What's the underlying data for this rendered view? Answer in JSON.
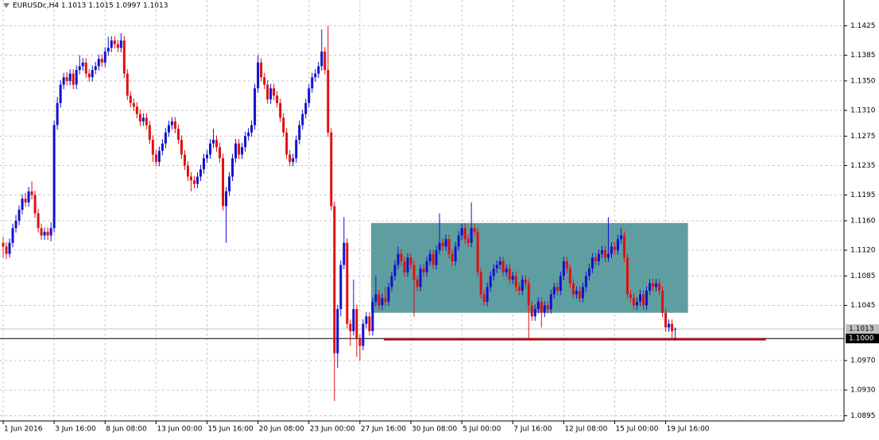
{
  "chart_data": {
    "type": "candlestick",
    "title": "EURUSDc,H4  1.1013 1.1015 1.0997 1.1013",
    "up_color": "#1010d0",
    "down_color": "#e01010",
    "grid": true,
    "xlim": [
      -1,
      264
    ],
    "ylim": [
      1.0888,
      1.146
    ],
    "xticks": [
      {
        "value": 0,
        "label": "1 Jun 2016"
      },
      {
        "value": 16,
        "label": "3 Jun 16:00"
      },
      {
        "value": 32,
        "label": "8 Jun 08:00"
      },
      {
        "value": 48,
        "label": "13 Jun 00:00"
      },
      {
        "value": 64,
        "label": "15 Jun 16:00"
      },
      {
        "value": 80,
        "label": "20 Jun 08:00"
      },
      {
        "value": 96,
        "label": "23 Jun 00:00"
      },
      {
        "value": 112,
        "label": "27 Jun 16:00"
      },
      {
        "value": 128,
        "label": "30 Jun 08:00"
      },
      {
        "value": 144,
        "label": "5 Jul 00:00"
      },
      {
        "value": 160,
        "label": "7 Jul 16:00"
      },
      {
        "value": 176,
        "label": "12 Jul 08:00"
      },
      {
        "value": 192,
        "label": "15 Jul 00:00"
      },
      {
        "value": 208,
        "label": "19 Jul 16:00"
      }
    ],
    "yticks": [
      1.1425,
      1.1385,
      {
        "value": 1.135,
        "label": "1.1350"
      },
      {
        "value": 1.131,
        "label": "1.1310"
      },
      1.1275,
      1.1235,
      1.1195,
      {
        "value": 1.116,
        "label": "1.1160"
      },
      {
        "value": 1.112,
        "label": "1.1120"
      },
      1.1085,
      1.1045,
      {
        "value": 1.097,
        "label": "1.0970"
      },
      {
        "value": 1.093,
        "label": "1.0930"
      },
      1.0895
    ],
    "price_lines": [
      {
        "value": 1.1013,
        "label": "1.1013",
        "color": "#c0c0c0",
        "text_color": "#000000"
      },
      {
        "value": 1.1,
        "label": "1.1000",
        "color": "#000000",
        "text_color": "#ffffff"
      }
    ],
    "rectangle": {
      "x": [
        115.5,
        215
      ],
      "y": [
        1.1035,
        1.1157
      ],
      "color": "#5f9ea0"
    },
    "hline": {
      "x": [
        119.5,
        239.5
      ],
      "y": 1.0999,
      "color": "#a01010"
    },
    "candles": [
      [
        1.113,
        1.1138,
        1.111,
        1.1125
      ],
      [
        1.1125,
        1.1131,
        1.1108,
        1.1115
      ],
      [
        1.1115,
        1.1136,
        1.111,
        1.113
      ],
      [
        1.113,
        1.1156,
        1.1124,
        1.115
      ],
      [
        1.115,
        1.1168,
        1.1144,
        1.116
      ],
      [
        1.116,
        1.1181,
        1.1154,
        1.1175
      ],
      [
        1.1175,
        1.1196,
        1.1169,
        1.119
      ],
      [
        1.119,
        1.1198,
        1.1179,
        1.1185
      ],
      [
        1.1185,
        1.1206,
        1.1179,
        1.12
      ],
      [
        1.12,
        1.1214,
        1.1189,
        1.1195
      ],
      [
        1.1195,
        1.1201,
        1.1164,
        1.117
      ],
      [
        1.117,
        1.1176,
        1.1144,
        1.115
      ],
      [
        1.115,
        1.1156,
        1.1134,
        1.114
      ],
      [
        1.114,
        1.1151,
        1.1134,
        1.1145
      ],
      [
        1.1145,
        1.1151,
        1.1134,
        1.114
      ],
      [
        1.114,
        1.1158,
        1.1132,
        1.115
      ],
      [
        1.115,
        1.1296,
        1.1144,
        1.129
      ],
      [
        1.129,
        1.1328,
        1.1284,
        1.132
      ],
      [
        1.132,
        1.1351,
        1.1314,
        1.1345
      ],
      [
        1.1345,
        1.1361,
        1.1339,
        1.1355
      ],
      [
        1.1355,
        1.1362,
        1.1344,
        1.135
      ],
      [
        1.135,
        1.1366,
        1.1344,
        1.136
      ],
      [
        1.136,
        1.1366,
        1.1339,
        1.1345
      ],
      [
        1.1345,
        1.1371,
        1.1339,
        1.1365
      ],
      [
        1.1365,
        1.1385,
        1.1359,
        1.137
      ],
      [
        1.137,
        1.1381,
        1.1364,
        1.1375
      ],
      [
        1.1375,
        1.1381,
        1.1354,
        1.136
      ],
      [
        1.136,
        1.1366,
        1.1349,
        1.1355
      ],
      [
        1.1355,
        1.1371,
        1.1349,
        1.1365
      ],
      [
        1.1365,
        1.1376,
        1.1359,
        1.137
      ],
      [
        1.137,
        1.1386,
        1.1364,
        1.138
      ],
      [
        1.138,
        1.1386,
        1.1369,
        1.1375
      ],
      [
        1.1375,
        1.1396,
        1.1369,
        1.139
      ],
      [
        1.139,
        1.141,
        1.1384,
        1.1395
      ],
      [
        1.1395,
        1.1411,
        1.1389,
        1.1405
      ],
      [
        1.1405,
        1.1411,
        1.1394,
        1.14
      ],
      [
        1.14,
        1.1406,
        1.1389,
        1.1395
      ],
      [
        1.1395,
        1.1415,
        1.1389,
        1.1405
      ],
      [
        1.1405,
        1.1411,
        1.1354,
        1.136
      ],
      [
        1.136,
        1.1366,
        1.1324,
        1.133
      ],
      [
        1.133,
        1.1336,
        1.1314,
        1.132
      ],
      [
        1.132,
        1.1326,
        1.1309,
        1.1315
      ],
      [
        1.1315,
        1.1321,
        1.1299,
        1.1305
      ],
      [
        1.1305,
        1.1311,
        1.1289,
        1.1295
      ],
      [
        1.1295,
        1.1306,
        1.1289,
        1.13
      ],
      [
        1.13,
        1.1306,
        1.1284,
        1.129
      ],
      [
        1.129,
        1.1296,
        1.1264,
        1.127
      ],
      [
        1.127,
        1.1276,
        1.124,
        1.125
      ],
      [
        1.125,
        1.1256,
        1.1234,
        1.124
      ],
      [
        1.124,
        1.1261,
        1.1234,
        1.1255
      ],
      [
        1.1255,
        1.1271,
        1.1249,
        1.1265
      ],
      [
        1.1265,
        1.1286,
        1.1259,
        1.128
      ],
      [
        1.128,
        1.1296,
        1.1274,
        1.129
      ],
      [
        1.129,
        1.1301,
        1.1284,
        1.1295
      ],
      [
        1.1295,
        1.1301,
        1.1279,
        1.1285
      ],
      [
        1.1285,
        1.1291,
        1.1264,
        1.127
      ],
      [
        1.127,
        1.1276,
        1.1244,
        1.125
      ],
      [
        1.125,
        1.1256,
        1.1229,
        1.1235
      ],
      [
        1.1235,
        1.1241,
        1.1214,
        1.122
      ],
      [
        1.122,
        1.1226,
        1.12,
        1.1215
      ],
      [
        1.1215,
        1.1221,
        1.1204,
        1.121
      ],
      [
        1.121,
        1.1226,
        1.1204,
        1.122
      ],
      [
        1.122,
        1.1236,
        1.1214,
        1.123
      ],
      [
        1.123,
        1.1251,
        1.1224,
        1.1245
      ],
      [
        1.1245,
        1.1256,
        1.1239,
        1.125
      ],
      [
        1.125,
        1.1271,
        1.1244,
        1.1265
      ],
      [
        1.1265,
        1.1285,
        1.1259,
        1.127
      ],
      [
        1.127,
        1.1276,
        1.1254,
        1.126
      ],
      [
        1.126,
        1.1266,
        1.1239,
        1.1245
      ],
      [
        1.1245,
        1.1251,
        1.1174,
        1.118
      ],
      [
        1.118,
        1.1206,
        1.113,
        1.12
      ],
      [
        1.12,
        1.1226,
        1.1194,
        1.122
      ],
      [
        1.122,
        1.1251,
        1.1214,
        1.1245
      ],
      [
        1.1245,
        1.1271,
        1.1239,
        1.1265
      ],
      [
        1.1265,
        1.1271,
        1.1244,
        1.125
      ],
      [
        1.125,
        1.1266,
        1.1244,
        1.126
      ],
      [
        1.126,
        1.1281,
        1.1254,
        1.1275
      ],
      [
        1.1275,
        1.1286,
        1.1269,
        1.128
      ],
      [
        1.128,
        1.1296,
        1.1274,
        1.129
      ],
      [
        1.129,
        1.1346,
        1.1284,
        1.134
      ],
      [
        1.134,
        1.1385,
        1.1334,
        1.1375
      ],
      [
        1.1375,
        1.1381,
        1.1349,
        1.1355
      ],
      [
        1.1355,
        1.1361,
        1.1339,
        1.1345
      ],
      [
        1.1345,
        1.1351,
        1.1319,
        1.1325
      ],
      [
        1.1325,
        1.1346,
        1.1319,
        1.134
      ],
      [
        1.134,
        1.1346,
        1.1324,
        1.133
      ],
      [
        1.133,
        1.1336,
        1.1314,
        1.132
      ],
      [
        1.132,
        1.1326,
        1.1294,
        1.13
      ],
      [
        1.13,
        1.1306,
        1.1274,
        1.128
      ],
      [
        1.128,
        1.1286,
        1.1244,
        1.125
      ],
      [
        1.125,
        1.1256,
        1.1234,
        1.124
      ],
      [
        1.124,
        1.1251,
        1.1234,
        1.1245
      ],
      [
        1.1245,
        1.1276,
        1.1239,
        1.127
      ],
      [
        1.127,
        1.1296,
        1.1264,
        1.129
      ],
      [
        1.129,
        1.1311,
        1.1284,
        1.1305
      ],
      [
        1.1305,
        1.1326,
        1.1299,
        1.132
      ],
      [
        1.132,
        1.1346,
        1.1314,
        1.134
      ],
      [
        1.134,
        1.1361,
        1.1334,
        1.1355
      ],
      [
        1.1355,
        1.1366,
        1.1349,
        1.136
      ],
      [
        1.136,
        1.1376,
        1.1354,
        1.137
      ],
      [
        1.137,
        1.142,
        1.1364,
        1.139
      ],
      [
        1.139,
        1.1396,
        1.1359,
        1.1365
      ],
      [
        1.1365,
        1.1425,
        1.1274,
        1.128
      ],
      [
        1.128,
        1.1286,
        1.1174,
        1.118
      ],
      [
        1.118,
        1.1186,
        1.0915,
        1.098
      ],
      [
        1.098,
        1.1046,
        1.096,
        1.104
      ],
      [
        1.104,
        1.1106,
        1.103,
        1.11
      ],
      [
        1.11,
        1.1165,
        1.1094,
        1.113
      ],
      [
        1.113,
        1.1136,
        1.1014,
        1.102
      ],
      [
        1.102,
        1.1026,
        1.099,
        1.101
      ],
      [
        1.101,
        1.108,
        1.1004,
        1.104
      ],
      [
        1.104,
        1.1046,
        1.0975,
        1.1
      ],
      [
        1.1,
        1.1006,
        1.097,
        1.099
      ],
      [
        1.099,
        1.1026,
        1.0984,
        1.102
      ],
      [
        1.102,
        1.1036,
        1.1014,
        1.103
      ],
      [
        1.103,
        1.1036,
        1.1004,
        1.101
      ],
      [
        1.101,
        1.1056,
        1.1004,
        1.105
      ],
      [
        1.105,
        1.1085,
        1.1044,
        1.106
      ],
      [
        1.106,
        1.1066,
        1.1039,
        1.1045
      ],
      [
        1.1045,
        1.1061,
        1.1039,
        1.1055
      ],
      [
        1.1055,
        1.107,
        1.1044,
        1.105
      ],
      [
        1.105,
        1.1076,
        1.1044,
        1.107
      ],
      [
        1.107,
        1.1091,
        1.1064,
        1.1085
      ],
      [
        1.1085,
        1.1106,
        1.1079,
        1.11
      ],
      [
        1.11,
        1.1125,
        1.1094,
        1.1115
      ],
      [
        1.1115,
        1.1121,
        1.1099,
        1.1105
      ],
      [
        1.1105,
        1.1111,
        1.1084,
        1.109
      ],
      [
        1.109,
        1.1116,
        1.1084,
        1.111
      ],
      [
        1.111,
        1.1116,
        1.1094,
        1.11
      ],
      [
        1.11,
        1.1106,
        1.103,
        1.108
      ],
      [
        1.108,
        1.1086,
        1.1064,
        1.107
      ],
      [
        1.107,
        1.1101,
        1.1064,
        1.1095
      ],
      [
        1.1095,
        1.1101,
        1.1084,
        1.109
      ],
      [
        1.109,
        1.1111,
        1.1084,
        1.1105
      ],
      [
        1.1105,
        1.1121,
        1.1099,
        1.1115
      ],
      [
        1.1115,
        1.1121,
        1.1094,
        1.11
      ],
      [
        1.11,
        1.1126,
        1.1094,
        1.112
      ],
      [
        1.112,
        1.117,
        1.1114,
        1.113
      ],
      [
        1.113,
        1.1136,
        1.1119,
        1.1125
      ],
      [
        1.1125,
        1.1141,
        1.1119,
        1.1135
      ],
      [
        1.1135,
        1.1141,
        1.1109,
        1.1115
      ],
      [
        1.1115,
        1.1121,
        1.1099,
        1.1105
      ],
      [
        1.1105,
        1.1131,
        1.1099,
        1.1125
      ],
      [
        1.1125,
        1.1146,
        1.1119,
        1.114
      ],
      [
        1.114,
        1.1156,
        1.1134,
        1.115
      ],
      [
        1.115,
        1.1156,
        1.1129,
        1.1135
      ],
      [
        1.1135,
        1.1141,
        1.1124,
        1.113
      ],
      [
        1.113,
        1.1185,
        1.1124,
        1.115
      ],
      [
        1.115,
        1.1156,
        1.1139,
        1.1145
      ],
      [
        1.1145,
        1.1151,
        1.1084,
        1.109
      ],
      [
        1.109,
        1.1096,
        1.1054,
        1.106
      ],
      [
        1.106,
        1.1066,
        1.1044,
        1.105
      ],
      [
        1.105,
        1.1076,
        1.1044,
        1.107
      ],
      [
        1.107,
        1.1091,
        1.1064,
        1.1085
      ],
      [
        1.1085,
        1.1101,
        1.1079,
        1.1095
      ],
      [
        1.1095,
        1.1106,
        1.1089,
        1.11
      ],
      [
        1.11,
        1.1111,
        1.1094,
        1.1105
      ],
      [
        1.1105,
        1.1111,
        1.1084,
        1.109
      ],
      [
        1.109,
        1.1101,
        1.1084,
        1.1095
      ],
      [
        1.1095,
        1.1101,
        1.1074,
        1.108
      ],
      [
        1.108,
        1.1091,
        1.1074,
        1.1085
      ],
      [
        1.1085,
        1.1091,
        1.1064,
        1.107
      ],
      [
        1.107,
        1.1076,
        1.1059,
        1.1065
      ],
      [
        1.1065,
        1.1086,
        1.1059,
        1.108
      ],
      [
        1.108,
        1.1086,
        1.1069,
        1.1075
      ],
      [
        1.1075,
        1.1081,
        1.1,
        1.1045
      ],
      [
        1.1045,
        1.1051,
        1.1024,
        1.103
      ],
      [
        1.103,
        1.1046,
        1.1024,
        1.104
      ],
      [
        1.104,
        1.1056,
        1.1034,
        1.105
      ],
      [
        1.105,
        1.1056,
        1.1015,
        1.1035
      ],
      [
        1.1035,
        1.1051,
        1.1029,
        1.1045
      ],
      [
        1.1045,
        1.1051,
        1.1034,
        1.104
      ],
      [
        1.104,
        1.1066,
        1.1034,
        1.106
      ],
      [
        1.106,
        1.1076,
        1.1054,
        1.107
      ],
      [
        1.107,
        1.1076,
        1.1059,
        1.1065
      ],
      [
        1.1065,
        1.1091,
        1.1059,
        1.1085
      ],
      [
        1.1085,
        1.1111,
        1.1079,
        1.1105
      ],
      [
        1.1105,
        1.1111,
        1.1089,
        1.1095
      ],
      [
        1.1095,
        1.1101,
        1.1069,
        1.1075
      ],
      [
        1.1075,
        1.1081,
        1.1054,
        1.106
      ],
      [
        1.106,
        1.1071,
        1.1054,
        1.1065
      ],
      [
        1.1065,
        1.1071,
        1.1049,
        1.1055
      ],
      [
        1.1055,
        1.1076,
        1.1049,
        1.107
      ],
      [
        1.107,
        1.1091,
        1.1064,
        1.1085
      ],
      [
        1.1085,
        1.1101,
        1.1079,
        1.1095
      ],
      [
        1.1095,
        1.1116,
        1.1089,
        1.111
      ],
      [
        1.111,
        1.1116,
        1.1099,
        1.1105
      ],
      [
        1.1105,
        1.1121,
        1.1099,
        1.1115
      ],
      [
        1.1115,
        1.1126,
        1.1109,
        1.112
      ],
      [
        1.112,
        1.1126,
        1.1104,
        1.111
      ],
      [
        1.111,
        1.1165,
        1.1104,
        1.1115
      ],
      [
        1.1115,
        1.1131,
        1.1109,
        1.1125
      ],
      [
        1.1125,
        1.1131,
        1.1114,
        1.112
      ],
      [
        1.112,
        1.1141,
        1.1114,
        1.1135
      ],
      [
        1.1135,
        1.115,
        1.1129,
        1.114
      ],
      [
        1.114,
        1.1146,
        1.1104,
        1.111
      ],
      [
        1.111,
        1.1116,
        1.1054,
        1.106
      ],
      [
        1.106,
        1.1066,
        1.1049,
        1.1055
      ],
      [
        1.1055,
        1.1061,
        1.1039,
        1.1045
      ],
      [
        1.1045,
        1.1056,
        1.1039,
        1.105
      ],
      [
        1.105,
        1.1066,
        1.1044,
        1.106
      ],
      [
        1.106,
        1.1066,
        1.1039,
        1.1045
      ],
      [
        1.1045,
        1.1071,
        1.1039,
        1.1065
      ],
      [
        1.1065,
        1.1081,
        1.1059,
        1.1075
      ],
      [
        1.1075,
        1.1081,
        1.1064,
        1.107
      ],
      [
        1.107,
        1.1081,
        1.1064,
        1.1075
      ],
      [
        1.1075,
        1.1081,
        1.1059,
        1.1065
      ],
      [
        1.1065,
        1.1071,
        1.1029,
        1.1035
      ],
      [
        1.1035,
        1.1041,
        1.1009,
        1.1015
      ],
      [
        1.1015,
        1.1026,
        1.1009,
        1.102
      ],
      [
        1.102,
        1.1026,
        1.1,
        1.101
      ],
      [
        1.1013,
        1.1015,
        1.0997,
        1.1013
      ]
    ]
  }
}
